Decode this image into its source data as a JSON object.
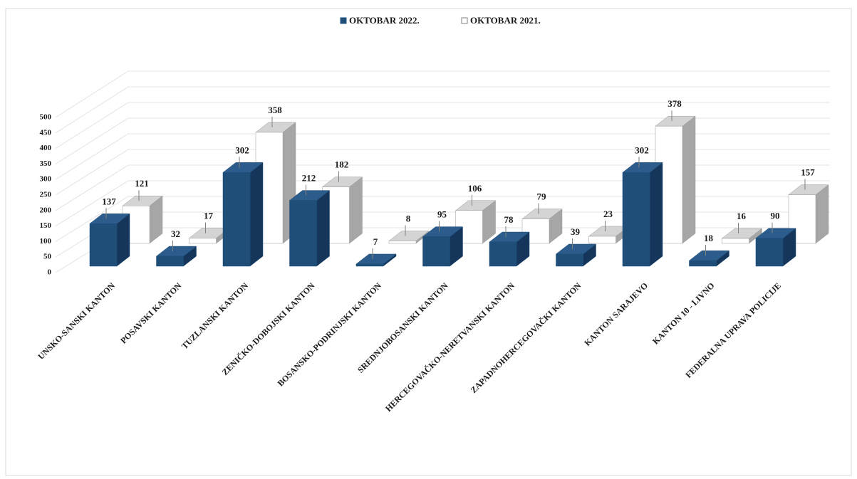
{
  "chart_data": {
    "type": "bar3d",
    "categories": [
      "UNSKO-SANSKI KANTON",
      "POSAVSKI KANTON",
      "TUZLANSKI KANTON",
      "ZENIČKO-DOBOJSKI KANTON",
      "BOSANSKO-PODRINJSKI KANTON",
      "SREDNJOBOSANSKI KANTON",
      "HERCEGOVAČKO-NERETVANSKI KANTON",
      "ZAPADNOHERCEGOVAČKI KANTON",
      "KANTON SARAJEVO",
      "KANTON 10 - LIVNO",
      "FEDERALNA UPRAVA POLICIJE"
    ],
    "series": [
      {
        "name": "OKTOBAR 2022.",
        "color": "#1f4e79",
        "values": [
          137,
          32,
          302,
          212,
          7,
          95,
          78,
          39,
          302,
          18,
          90
        ]
      },
      {
        "name": "OKTOBAR 2021.",
        "color": "#ffffff",
        "values": [
          121,
          17,
          358,
          182,
          8,
          106,
          79,
          23,
          378,
          16,
          157
        ]
      }
    ],
    "ylim": [
      0,
      500
    ],
    "yticks": [
      0,
      50,
      100,
      150,
      200,
      250,
      300,
      350,
      400,
      450,
      500
    ],
    "grid": true,
    "legend": "top"
  }
}
